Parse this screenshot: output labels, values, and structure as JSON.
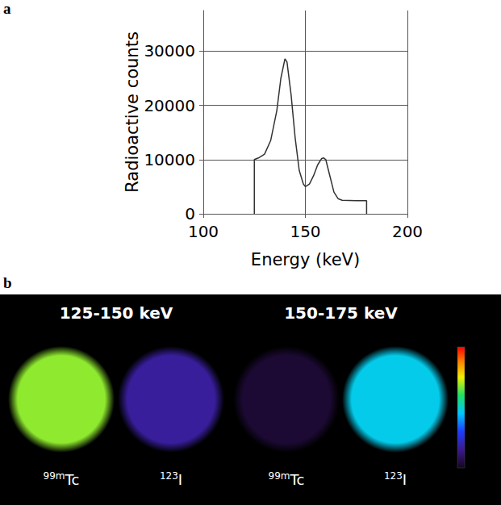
{
  "panel_labels": [
    "a",
    "b"
  ],
  "chart_data": {
    "type": "line",
    "x_label": "Energy (keV)",
    "y_label": "Radioactive counts",
    "x": [
      125,
      125,
      127,
      130,
      133,
      136,
      138,
      140,
      141,
      143,
      145,
      147,
      149,
      150,
      152,
      154,
      156,
      158,
      159,
      160,
      162,
      164,
      166,
      168,
      175,
      180,
      180
    ],
    "values": [
      0,
      10000,
      10300,
      11000,
      13500,
      19000,
      25000,
      28600,
      28000,
      22000,
      14000,
      8000,
      5500,
      5000,
      5500,
      7000,
      9000,
      10200,
      10300,
      10000,
      7000,
      4000,
      2800,
      2500,
      2400,
      2400,
      0
    ],
    "color": "#333333",
    "xlim": [
      100,
      200
    ],
    "xticks": [
      100,
      150,
      200
    ],
    "ylim": [
      0,
      37500
    ],
    "yticks": [
      0,
      10000,
      20000,
      30000
    ],
    "grid": true
  },
  "image_panel": {
    "windows": [
      {
        "label": "125-150 keV",
        "images": [
          {
            "isotope_mass": "99m",
            "isotope": "Tc",
            "intensity": 0.68
          },
          {
            "isotope_mass": "123",
            "isotope": "I",
            "intensity": 0.17
          }
        ]
      },
      {
        "label": "150-175 keV",
        "images": [
          {
            "isotope_mass": "99m",
            "isotope": "Tc",
            "intensity": 0.03
          },
          {
            "isotope_mass": "123",
            "isotope": "I",
            "intensity": 0.47
          }
        ]
      }
    ],
    "colorbar": {
      "range": [
        0,
        1
      ]
    }
  }
}
